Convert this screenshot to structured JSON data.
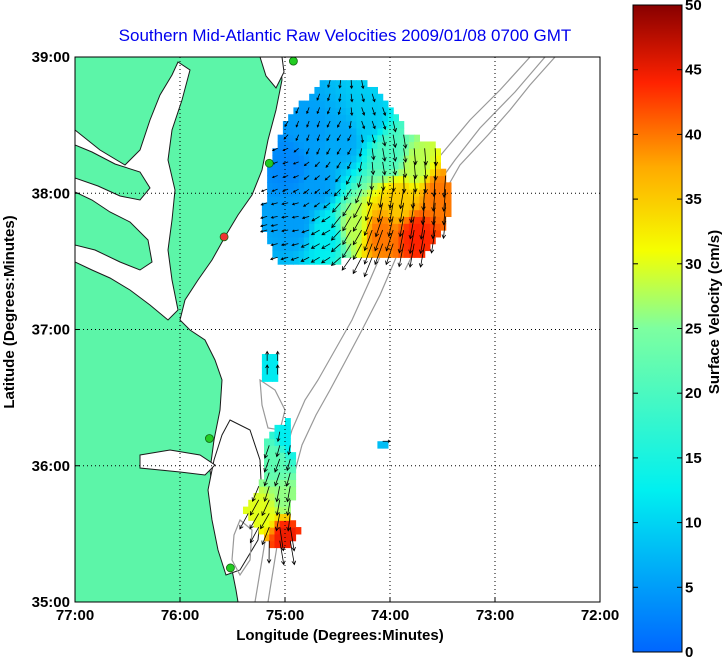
{
  "chart_data": {
    "type": "heatmap",
    "title": "Southern Mid-Atlantic Raw Velocities 2009/01/08 0700 GMT",
    "xlabel": "Longitude (Degrees:Minutes)",
    "ylabel": "Latitude (Degrees:Minutes)",
    "colorbar_label": "Surface Velocity (cm/s)",
    "x_ticks": [
      "77:00",
      "76:00",
      "75:00",
      "74:00",
      "73:00",
      "72:00"
    ],
    "y_ticks": [
      "39:00",
      "38:00",
      "37:00",
      "36:00",
      "35:00"
    ],
    "colorbar_ticks": [
      "50",
      "45",
      "40",
      "35",
      "30",
      "25",
      "20",
      "15",
      "10",
      "5",
      "0"
    ],
    "xlim": [
      -77,
      -72
    ],
    "ylim": [
      35,
      39
    ],
    "clim": [
      0,
      50
    ],
    "grid": true,
    "colors": {
      "land": "#5cf5a8",
      "coast": "#1a1a1a",
      "bathymetry": "#999999",
      "grid": "#000000",
      "title": "#0000ee",
      "station": "#22cc22",
      "station_alt": "#ee3333"
    },
    "stations": [
      {
        "lon": -74.92,
        "lat": 38.97,
        "kind": "normal"
      },
      {
        "lon": -75.15,
        "lat": 38.22,
        "kind": "normal"
      },
      {
        "lon": -75.58,
        "lat": 37.68,
        "kind": "alt"
      },
      {
        "lon": -75.72,
        "lat": 36.2,
        "kind": "normal"
      },
      {
        "lon": -75.52,
        "lat": 35.25,
        "kind": "normal"
      }
    ],
    "regions": [
      {
        "name": "north",
        "points": [
          [
            -74.6,
            38.85
          ],
          [
            -74.25,
            38.85
          ],
          [
            -73.95,
            38.6
          ],
          [
            -73.85,
            38.45
          ],
          [
            -73.55,
            38.35
          ],
          [
            -73.42,
            38.0
          ],
          [
            -73.45,
            37.8
          ],
          [
            -73.7,
            37.55
          ],
          [
            -74.3,
            37.52
          ],
          [
            -74.8,
            37.48
          ],
          [
            -75.05,
            37.48
          ],
          [
            -75.22,
            37.75
          ],
          [
            -75.15,
            38.2
          ],
          [
            -75.0,
            38.55
          ]
        ]
      },
      {
        "name": "north-strip",
        "points": [
          [
            -75.22,
            37.82
          ],
          [
            -75.0,
            37.82
          ],
          [
            -75.0,
            37.72
          ],
          [
            -75.22,
            37.72
          ]
        ]
      },
      {
        "name": "south",
        "points": [
          [
            -75.2,
            36.2
          ],
          [
            -74.98,
            36.35
          ],
          [
            -74.9,
            35.95
          ],
          [
            -74.95,
            35.6
          ],
          [
            -74.82,
            35.52
          ],
          [
            -75.0,
            35.4
          ],
          [
            -75.12,
            35.42
          ],
          [
            -75.4,
            35.65
          ],
          [
            -75.22,
            35.9
          ]
        ]
      },
      {
        "name": "patch",
        "points": [
          [
            -75.22,
            36.82
          ],
          [
            -75.05,
            36.82
          ],
          [
            -75.05,
            36.62
          ],
          [
            -75.22,
            36.62
          ]
        ]
      },
      {
        "name": "patch2",
        "points": [
          [
            -74.12,
            36.2
          ],
          [
            -74.03,
            36.2
          ],
          [
            -74.03,
            36.13
          ],
          [
            -74.12,
            36.13
          ]
        ]
      }
    ],
    "velocity_samples": [
      {
        "lon": -74.75,
        "lat": 38.45,
        "speed": 5,
        "dir": 200
      },
      {
        "lon": -74.45,
        "lat": 38.4,
        "speed": 6,
        "dir": 210
      },
      {
        "lon": -74.2,
        "lat": 38.55,
        "speed": 9,
        "dir": 160
      },
      {
        "lon": -74.0,
        "lat": 38.3,
        "speed": 20,
        "dir": 170
      },
      {
        "lon": -73.75,
        "lat": 38.2,
        "speed": 28,
        "dir": 175
      },
      {
        "lon": -73.55,
        "lat": 38.0,
        "speed": 40,
        "dir": 185
      },
      {
        "lon": -73.9,
        "lat": 37.95,
        "speed": 35,
        "dir": 190
      },
      {
        "lon": -74.1,
        "lat": 37.7,
        "speed": 40,
        "dir": 200
      },
      {
        "lon": -73.75,
        "lat": 37.7,
        "speed": 44,
        "dir": 190
      },
      {
        "lon": -74.35,
        "lat": 37.75,
        "speed": 28,
        "dir": 210
      },
      {
        "lon": -74.6,
        "lat": 37.7,
        "speed": 12,
        "dir": 240
      },
      {
        "lon": -74.9,
        "lat": 37.8,
        "speed": 5,
        "dir": 260
      },
      {
        "lon": -74.95,
        "lat": 38.2,
        "speed": 3,
        "dir": 250
      },
      {
        "lon": -74.7,
        "lat": 38.05,
        "speed": 5,
        "dir": 230
      },
      {
        "lon": -75.1,
        "lat": 36.05,
        "speed": 22,
        "dir": 200
      },
      {
        "lon": -75.0,
        "lat": 35.75,
        "speed": 26,
        "dir": 190
      },
      {
        "lon": -75.0,
        "lat": 35.5,
        "speed": 45,
        "dir": 170
      },
      {
        "lon": -75.2,
        "lat": 35.65,
        "speed": 30,
        "dir": 210
      },
      {
        "lon": -74.95,
        "lat": 36.2,
        "speed": 12,
        "dir": 190
      },
      {
        "lon": -75.15,
        "lat": 36.7,
        "speed": 12,
        "dir": 0
      },
      {
        "lon": -74.08,
        "lat": 36.16,
        "speed": 8,
        "dir": 90
      }
    ]
  }
}
